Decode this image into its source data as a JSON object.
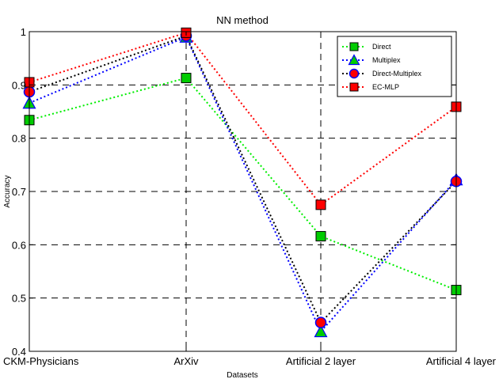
{
  "chart_data": {
    "type": "line",
    "title": "NN method",
    "xlabel": "Datasets",
    "ylabel": "Accuracy",
    "categories": [
      "CKM-Physicians",
      "ArXiv",
      "Artificial 2 layer",
      "Artificial 4 layer"
    ],
    "ylim": [
      0.4,
      1.0
    ],
    "yticks": [
      "0.4",
      "0.5",
      "0.6",
      "0.7",
      "0.8",
      "0.9",
      "1"
    ],
    "grid": true,
    "legend_position": "top-right",
    "series": [
      {
        "name": "Direct",
        "values": [
          0.834,
          0.913,
          0.616,
          0.515
        ],
        "line_color": "#00ee00",
        "marker": "square",
        "marker_fill": "#00cc00"
      },
      {
        "name": "Multiplex",
        "values": [
          0.866,
          0.99,
          0.437,
          0.722
        ],
        "line_color": "#0000ff",
        "marker": "triangle",
        "marker_fill": "#00cc00"
      },
      {
        "name": "Direct-Multiplex",
        "values": [
          0.887,
          0.992,
          0.454,
          0.719
        ],
        "line_color": "#000000",
        "marker": "circle",
        "marker_fill": "#ff0000"
      },
      {
        "name": "EC-MLP",
        "values": [
          0.905,
          0.998,
          0.675,
          0.859
        ],
        "line_color": "#ff0000",
        "marker": "square",
        "marker_fill": "#ff0000"
      }
    ]
  }
}
